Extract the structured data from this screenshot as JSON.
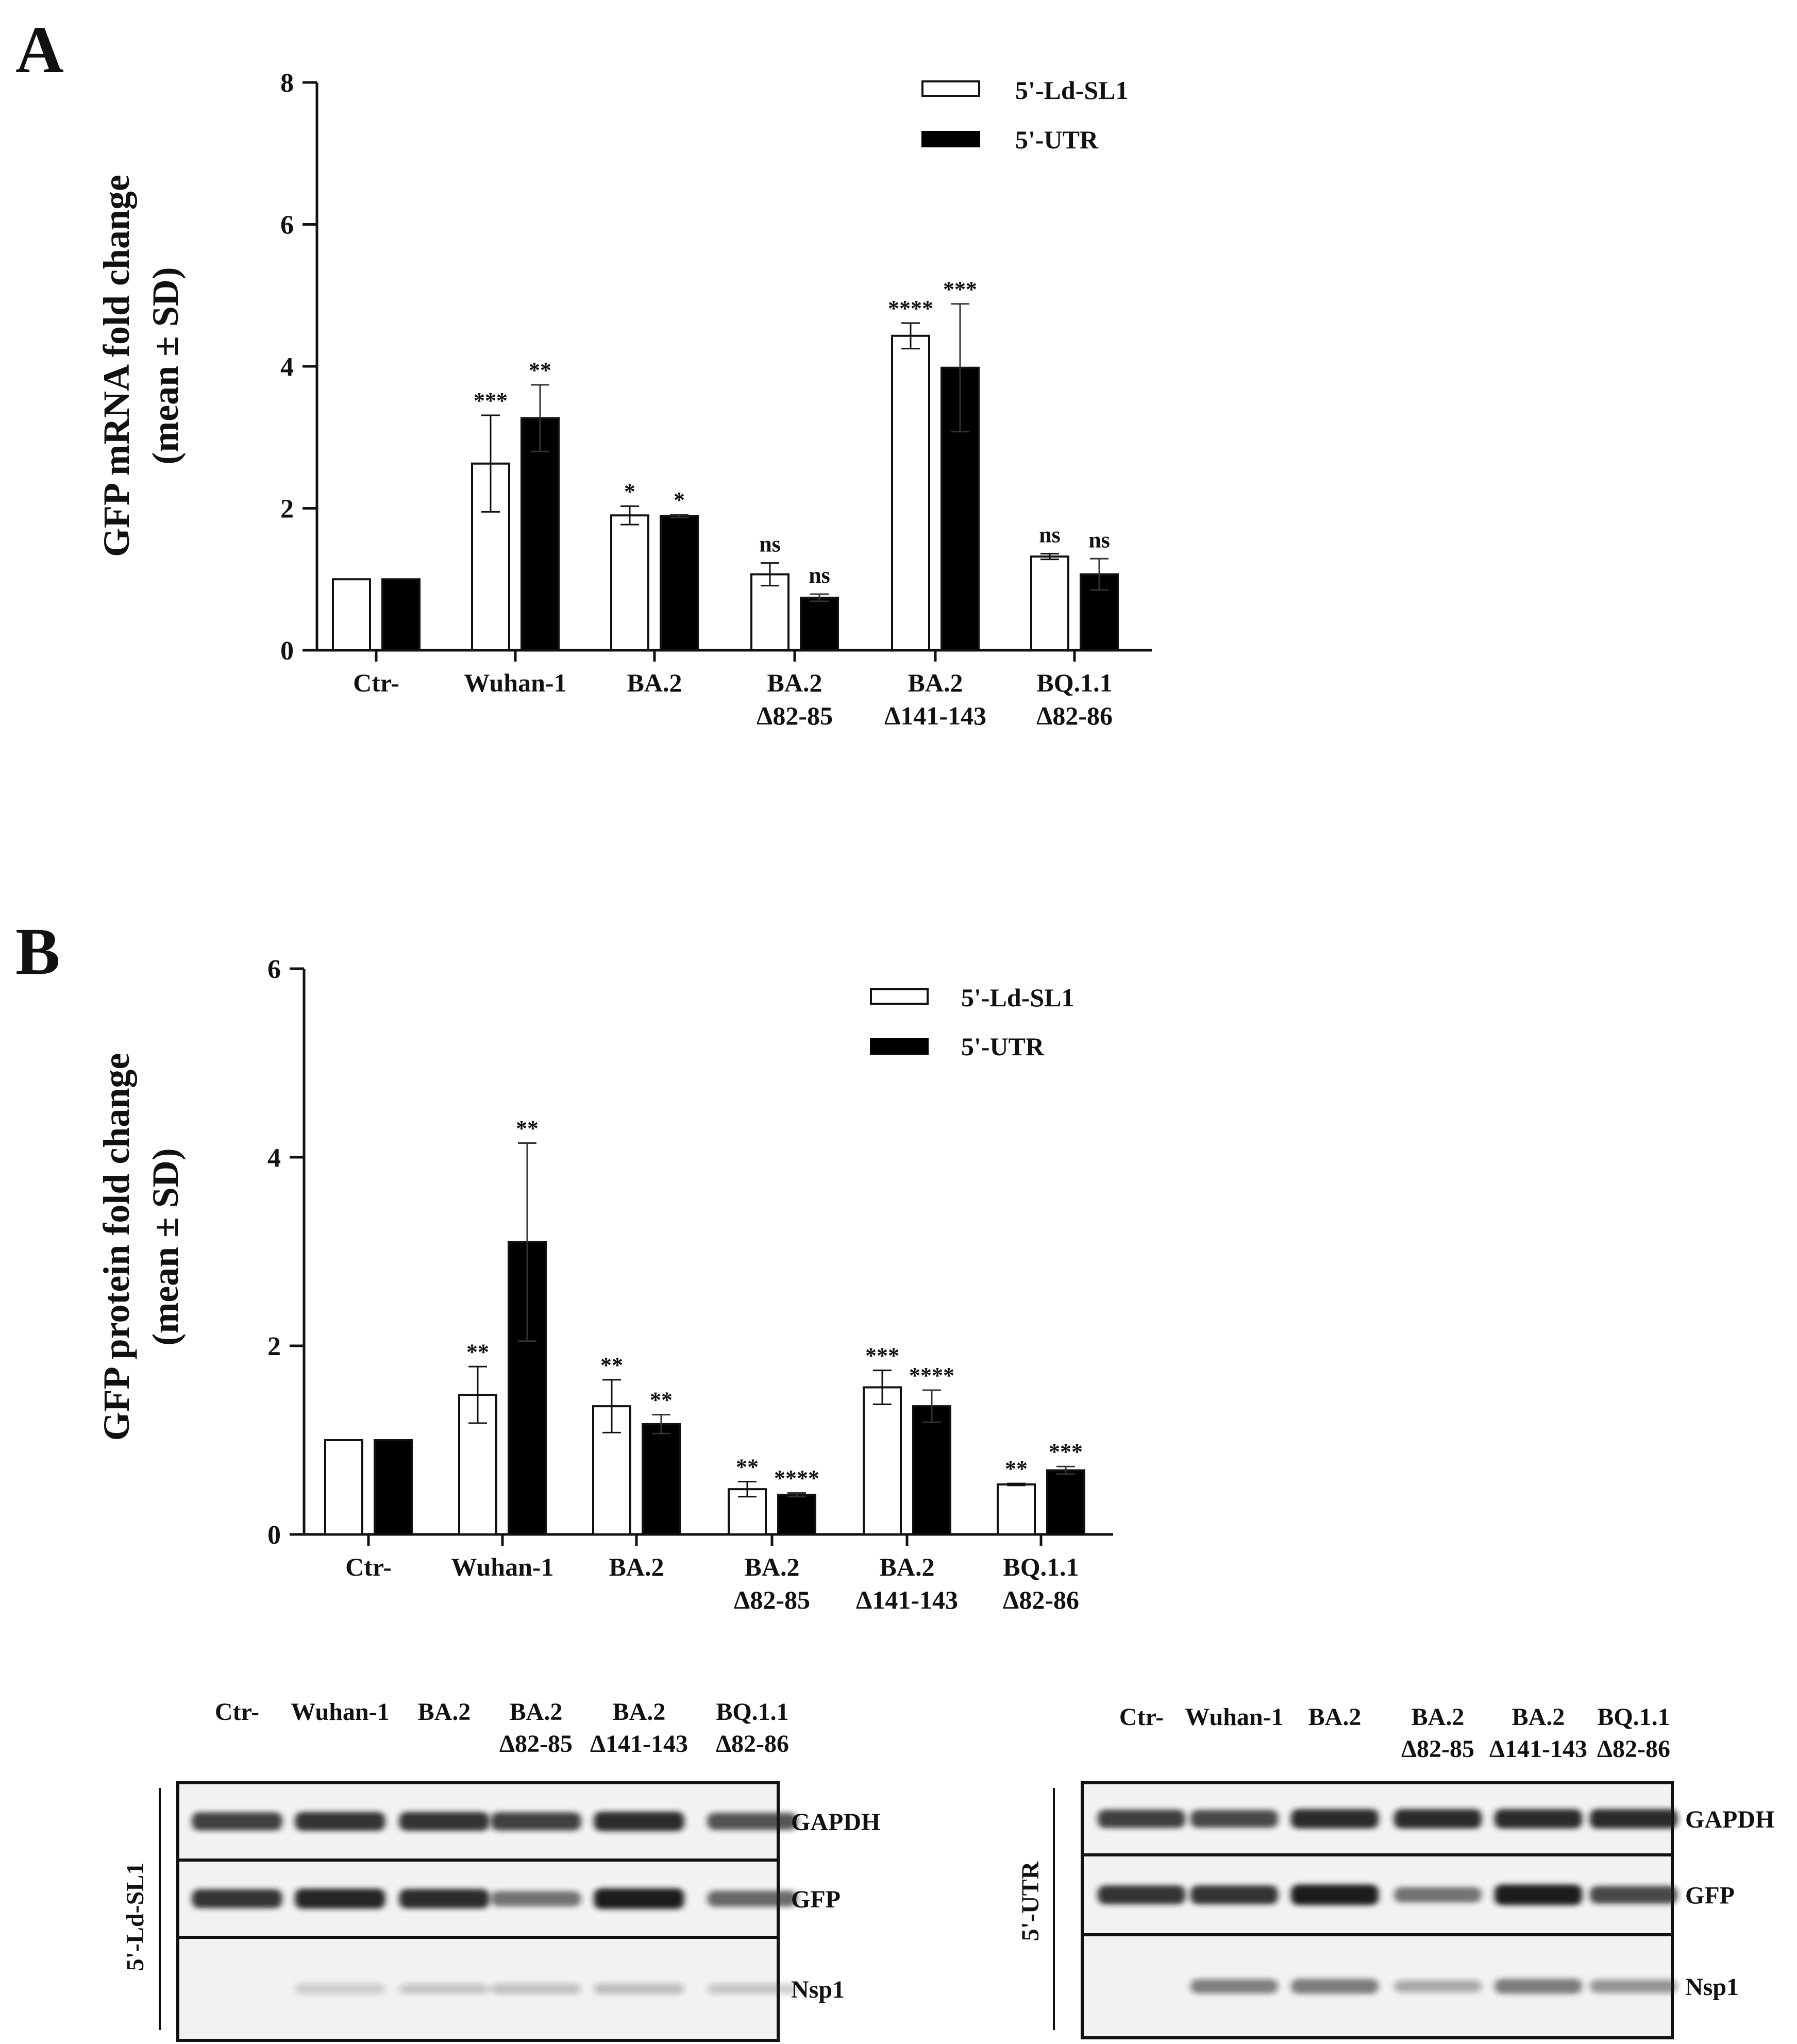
{
  "panels": [
    {
      "letter": "A",
      "y_label_line1": "GFP mRNA fold change",
      "y_label_line2": "(mean ± SD)"
    },
    {
      "letter": "B",
      "y_label_line1": "GFP protein fold change",
      "y_label_line2": "(mean ± SD)"
    }
  ],
  "legend": {
    "white": "5'-Ld-SL1",
    "black": "5'-UTR"
  },
  "colors": {
    "white_bar": "#ffffff",
    "black_bar": "#000000",
    "axis": "#111111"
  },
  "chart_data": [
    {
      "type": "bar",
      "title": "",
      "ylabel": "GFP mRNA fold change (mean ± SD)",
      "ylim": [
        0,
        8
      ],
      "yticks": [
        0,
        2,
        4,
        6,
        8
      ],
      "categories": [
        [
          "Ctr-"
        ],
        [
          "Wuhan-1"
        ],
        [
          "BA.2"
        ],
        [
          "BA.2",
          "Δ82-85"
        ],
        [
          "BA.2",
          "Δ141-143"
        ],
        [
          "BQ.1.1",
          "Δ82-86"
        ]
      ],
      "series": [
        {
          "name": "5'-Ld-SL1",
          "color": "white",
          "values": [
            1.0,
            2.63,
            1.9,
            1.07,
            4.43,
            1.32
          ],
          "sd": [
            0,
            0.68,
            0.13,
            0.16,
            0.18,
            0.04
          ],
          "sig": [
            "",
            "***",
            "*",
            "ns",
            "****",
            "ns"
          ]
        },
        {
          "name": "5'-UTR",
          "color": "black",
          "values": [
            1.0,
            3.27,
            1.89,
            0.74,
            3.98,
            1.07
          ],
          "sd": [
            0,
            0.47,
            0.02,
            0.05,
            0.9,
            0.22
          ],
          "sig": [
            "",
            "**",
            "*",
            "ns",
            "***",
            "ns"
          ]
        }
      ]
    },
    {
      "type": "bar",
      "title": "",
      "ylabel": "GFP protein fold change (mean ± SD)",
      "ylim": [
        0,
        6
      ],
      "yticks": [
        0,
        2,
        4,
        6
      ],
      "categories": [
        [
          "Ctr-"
        ],
        [
          "Wuhan-1"
        ],
        [
          "BA.2"
        ],
        [
          "BA.2",
          "Δ82-85"
        ],
        [
          "BA.2",
          "Δ141-143"
        ],
        [
          "BQ.1.1",
          "Δ82-86"
        ]
      ],
      "series": [
        {
          "name": "5'-Ld-SL1",
          "color": "white",
          "values": [
            1.0,
            1.48,
            1.36,
            0.48,
            1.56,
            0.53
          ],
          "sd": [
            0,
            0.3,
            0.28,
            0.08,
            0.18,
            0.01
          ],
          "sig": [
            "",
            "**",
            "**",
            "**",
            "***",
            "**"
          ]
        },
        {
          "name": "5'-UTR",
          "color": "black",
          "values": [
            1.0,
            3.1,
            1.17,
            0.42,
            1.36,
            0.68
          ],
          "sd": [
            0,
            1.05,
            0.1,
            0.02,
            0.17,
            0.04
          ],
          "sig": [
            "",
            "**",
            "**",
            "****",
            "****",
            "***"
          ]
        }
      ]
    }
  ],
  "blots": [
    {
      "side_label": "5'-Ld-SL1",
      "lanes": [
        [
          "Ctr-"
        ],
        [
          "Wuhan-1"
        ],
        [
          "BA.2"
        ],
        [
          "BA.2",
          "Δ82-85"
        ],
        [
          "BA.2",
          "Δ141-143"
        ],
        [
          "BQ.1.1",
          "Δ82-86"
        ]
      ],
      "rows": [
        {
          "label": "GAPDH",
          "intensity": [
            0.8,
            0.85,
            0.85,
            0.8,
            0.9,
            0.7
          ]
        },
        {
          "label": "GFP",
          "intensity": [
            0.85,
            0.95,
            0.9,
            0.55,
            1.0,
            0.6
          ]
        },
        {
          "label": "Nsp1",
          "intensity": [
            0.0,
            0.08,
            0.1,
            0.12,
            0.15,
            0.1
          ]
        }
      ]
    },
    {
      "side_label": "5'-UTR",
      "lanes": [
        [
          "Ctr-"
        ],
        [
          "Wuhan-1"
        ],
        [
          "BA.2"
        ],
        [
          "BA.2",
          "Δ82-85"
        ],
        [
          "BA.2",
          "Δ141-143"
        ],
        [
          "BQ.1.1",
          "Δ82-86"
        ]
      ],
      "rows": [
        {
          "label": "GAPDH",
          "intensity": [
            0.8,
            0.75,
            0.9,
            0.9,
            0.9,
            0.9
          ]
        },
        {
          "label": "GFP",
          "intensity": [
            0.85,
            0.85,
            1.0,
            0.55,
            1.0,
            0.75
          ]
        },
        {
          "label": "Nsp1",
          "intensity": [
            0.0,
            0.45,
            0.5,
            0.25,
            0.5,
            0.35
          ]
        }
      ]
    }
  ]
}
